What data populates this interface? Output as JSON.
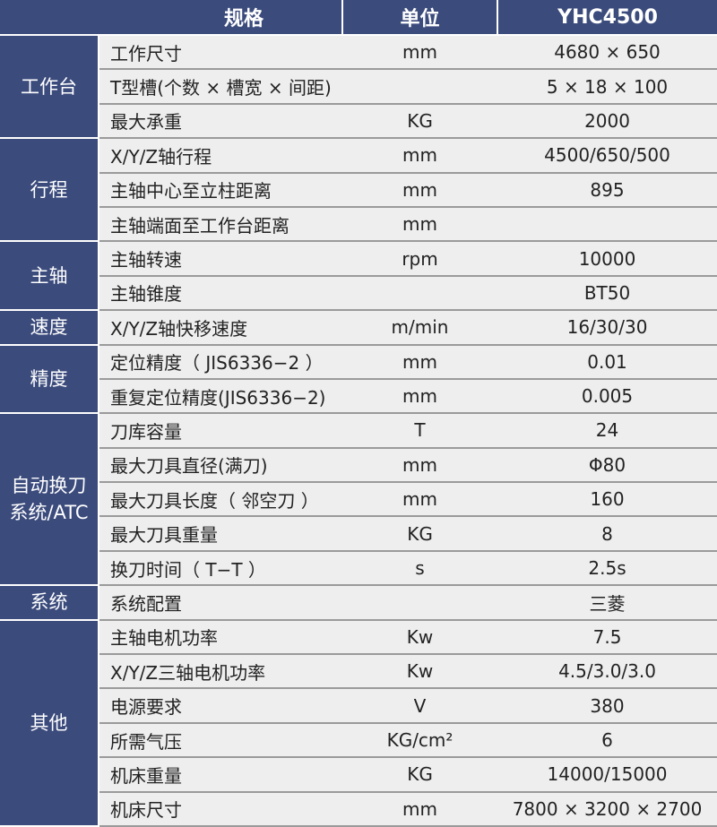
{
  "header": {
    "spec": "规格",
    "unit": "单位",
    "model": "YHC4500"
  },
  "colors": {
    "navy": "#3b4b7c",
    "row_bg": "#eeeeee",
    "separator": "#9a9a9a"
  },
  "groups": [
    {
      "category": "工作台",
      "rows": [
        {
          "name": "工作尺寸",
          "unit": "mm",
          "value": "4680 × 650"
        },
        {
          "name": "T型槽(个数 × 槽宽 × 间距)",
          "unit": "",
          "value": "5 × 18 × 100"
        },
        {
          "name": "最大承重",
          "unit": "KG",
          "value": "2000"
        }
      ]
    },
    {
      "category": "行程",
      "rows": [
        {
          "name": "X/Y/Z轴行程",
          "unit": "mm",
          "value": "4500/650/500"
        },
        {
          "name": "主轴中心至立柱距离",
          "unit": "mm",
          "value": "895"
        },
        {
          "name": "主轴端面至工作台距离",
          "unit": "mm",
          "value": ""
        }
      ]
    },
    {
      "category": "主轴",
      "rows": [
        {
          "name": "主轴转速",
          "unit": "rpm",
          "value": "10000"
        },
        {
          "name": "主轴锥度",
          "unit": "",
          "value": "BT50"
        }
      ]
    },
    {
      "category": "速度",
      "rows": [
        {
          "name": "X/Y/Z轴快移速度",
          "unit": "m/min",
          "value": "16/30/30"
        }
      ]
    },
    {
      "category": "精度",
      "rows": [
        {
          "name": "定位精度（ JIS6336−2 ）",
          "unit": "mm",
          "value": "0.01"
        },
        {
          "name": "重复定位精度(JIS6336−2)",
          "unit": "mm",
          "value": "0.005"
        }
      ]
    },
    {
      "category": "自动换刀系统/ATC",
      "rows": [
        {
          "name": "刀库容量",
          "unit": "T",
          "value": "24"
        },
        {
          "name": "最大刀具直径(满刀)",
          "unit": "mm",
          "value": "Φ80"
        },
        {
          "name": "最大刀具长度（ 邻空刀 ）",
          "unit": "mm",
          "value": "160"
        },
        {
          "name": "最大刀具重量",
          "unit": "KG",
          "value": "8"
        },
        {
          "name": "换刀时间（ T−T ）",
          "unit": "s",
          "value": "2.5s"
        }
      ]
    },
    {
      "category": "系统",
      "rows": [
        {
          "name": "系统配置",
          "unit": "",
          "value": "三菱"
        }
      ]
    },
    {
      "category": "其他",
      "rows": [
        {
          "name": "主轴电机功率",
          "unit": "Kw",
          "value": "7.5"
        },
        {
          "name": "X/Y/Z三轴电机功率",
          "unit": "Kw",
          "value": "4.5/3.0/3.0"
        },
        {
          "name": "电源要求",
          "unit": "V",
          "value": "380"
        },
        {
          "name": "所需气压",
          "unit": "KG/cm²",
          "value": "6"
        },
        {
          "name": "机床重量",
          "unit": "KG",
          "value": "14000/15000"
        },
        {
          "name": "机床尺寸",
          "unit": "mm",
          "value": "7800 × 3200 × 2700"
        }
      ]
    }
  ]
}
